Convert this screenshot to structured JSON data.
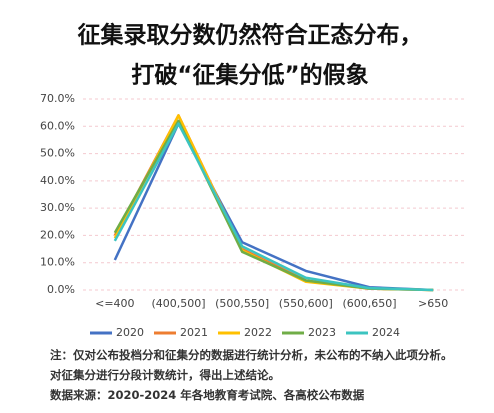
{
  "chart_data": {
    "type": "line",
    "title_lines": [
      "征集录取分数仍然符合正态分布，",
      "打破“征集分低”的假象"
    ],
    "categories": [
      "<=400",
      "(400,500]",
      "(500,550]",
      "(550,600]",
      "(600,650]",
      ">650"
    ],
    "series": [
      {
        "name": "2020",
        "color": "#4472c4",
        "values": [
          11,
          61,
          17.5,
          7,
          1,
          0
        ]
      },
      {
        "name": "2021",
        "color": "#ed7d31",
        "values": [
          20,
          64,
          15,
          3.5,
          0.5,
          0
        ]
      },
      {
        "name": "2022",
        "color": "#ffc000",
        "values": [
          19,
          64,
          14.5,
          3,
          0.5,
          0
        ]
      },
      {
        "name": "2023",
        "color": "#70ad47",
        "values": [
          21,
          62,
          14,
          3.5,
          0.5,
          0
        ]
      },
      {
        "name": "2024",
        "color": "#3cc4c0",
        "values": [
          18,
          61,
          16,
          4.5,
          0.7,
          0
        ]
      }
    ],
    "ylim": [
      0,
      70
    ],
    "yticks": [
      {
        "value": 0,
        "label": "0.0%"
      },
      {
        "value": 10,
        "label": "10.0%"
      },
      {
        "value": 20,
        "label": "20.0%"
      },
      {
        "value": 30,
        "label": "30.0%"
      },
      {
        "value": 40,
        "label": "40.0%"
      },
      {
        "value": 50,
        "label": "50.0%"
      },
      {
        "value": 60,
        "label": "60.0%"
      },
      {
        "value": 70,
        "label": "70.0%"
      }
    ],
    "grid": true,
    "notes": [
      "注：仅对公布投档分和征集分的数据进行统计分析，未公布的不纳入此项分析。对征集分进行分段计数统计，得出上述结论。",
      "数据来源：2020-2024 年各地教育考试院、各高校公布数据"
    ]
  }
}
